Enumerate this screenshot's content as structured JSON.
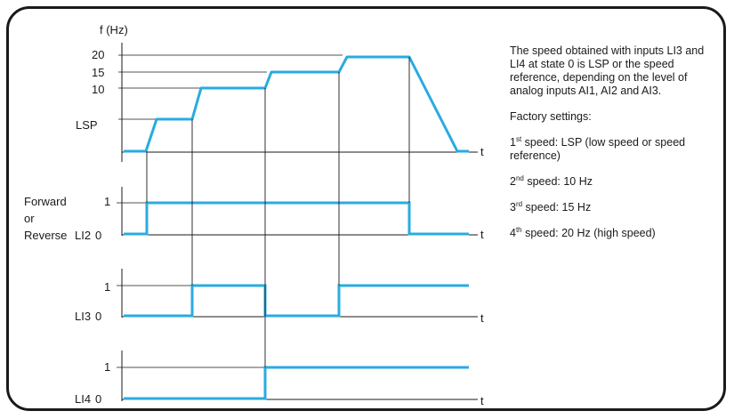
{
  "frequency_axis": {
    "unit_label": "f (Hz)",
    "tick_labels": [
      "20",
      "15",
      "10",
      "LSP"
    ],
    "time_label": "t"
  },
  "li2_channel": {
    "name_lines": [
      "Forward",
      "or",
      "Reverse"
    ],
    "signal_label": "LI2",
    "high_label": "1",
    "low_label": "0",
    "time_label": "t"
  },
  "li3_channel": {
    "signal_label": "LI3",
    "high_label": "1",
    "low_label": "0",
    "time_label": "t"
  },
  "li4_channel": {
    "signal_label": "LI4",
    "high_label": "1",
    "low_label": "0",
    "time_label": "t"
  },
  "notes": {
    "intro": "The speed obtained with inputs LI3 and LI4 at state 0 is LSP or the speed reference, depending on the level of analog inputs AI1, AI2 and AI3.",
    "factory_heading": "Factory settings:",
    "speeds": [
      {
        "ordinal": "1",
        "suffix": "st",
        "text": " speed: LSP (low speed or speed reference)"
      },
      {
        "ordinal": "2",
        "suffix": "nd",
        "text": " speed: 10 Hz"
      },
      {
        "ordinal": "3",
        "suffix": "rd",
        "text": " speed: 15 Hz"
      },
      {
        "ordinal": "4",
        "suffix": "th",
        "text": " speed: 20 Hz (high speed)"
      }
    ]
  },
  "colors": {
    "trace": "#29abe2",
    "ink": "#1a1a1a"
  }
}
